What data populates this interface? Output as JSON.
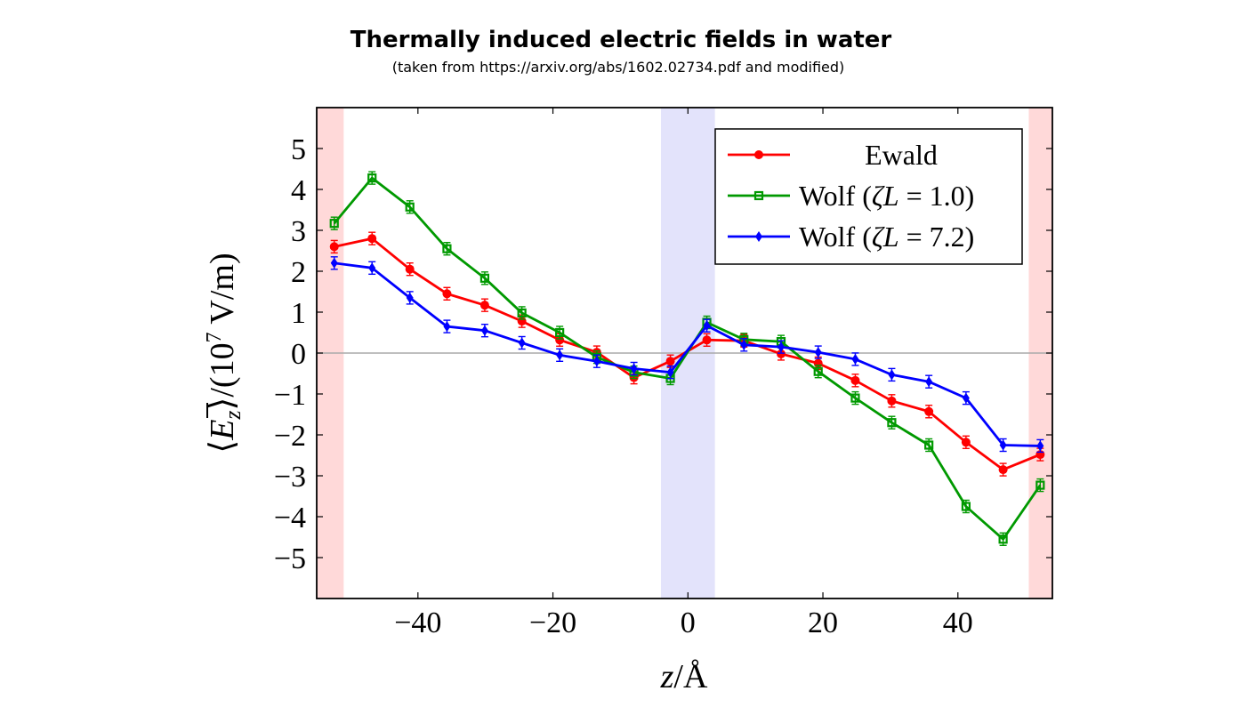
{
  "chart_data": {
    "type": "line",
    "title": "Thermally induced electric fields in water",
    "subtitle": "(taken from https://arxiv.org/abs/1602.02734.pdf and modified)",
    "xlabel_var": "z",
    "xlabel_sep": "/",
    "xlabel_unit": "Å",
    "ylabel_left": "⟨",
    "ylabel_var": "E",
    "ylabel_sub": "z",
    "ylabel_right": "⟩/(10",
    "ylabel_exp": "7",
    "ylabel_unit": " V/m)",
    "xlim": [
      -55,
      54
    ],
    "ylim": [
      -6,
      6
    ],
    "x_ticks": [
      -40,
      -20,
      0,
      20,
      40
    ],
    "x_tick_labels": [
      "−40",
      "−20",
      "0",
      "20",
      "40"
    ],
    "y_ticks": [
      5,
      4,
      3,
      2,
      1,
      0,
      -1,
      -2,
      -3,
      -4,
      -5
    ],
    "y_tick_labels": [
      "5",
      "4",
      "3",
      "2",
      "1",
      "0",
      "−1",
      "−2",
      "−3",
      "−4",
      "−5"
    ],
    "shaded_regions": [
      {
        "x": [
          -55,
          -51
        ],
        "color": "#ffd9d9"
      },
      {
        "x": [
          -4,
          4
        ],
        "color": "#e3e3fb"
      },
      {
        "x": [
          50.5,
          54
        ],
        "color": "#ffd9d9"
      }
    ],
    "zero_line": true,
    "grid": false,
    "legend": "top-right",
    "series": [
      {
        "name": "Ewald",
        "color": "#ff0000",
        "marker": "circle",
        "x": [
          -52.4,
          -46.8,
          -41.2,
          -35.7,
          -30.1,
          -24.6,
          -19.0,
          -13.5,
          -8.0,
          -2.6,
          2.8,
          8.3,
          13.8,
          19.3,
          24.8,
          30.2,
          35.7,
          41.2,
          46.7,
          52.2
        ],
        "y": [
          2.6,
          2.8,
          2.05,
          1.45,
          1.17,
          0.78,
          0.32,
          0.02,
          -0.6,
          -0.2,
          0.32,
          0.3,
          -0.02,
          -0.25,
          -0.67,
          -1.17,
          -1.43,
          -2.18,
          -2.85,
          -2.48
        ]
      },
      {
        "name": "Wolf (ζL = 1.0)",
        "name_prefix": "Wolf (",
        "name_var": "ζL",
        "name_suffix": " = 1.0)",
        "color": "#009900",
        "marker": "square",
        "x": [
          -52.4,
          -46.8,
          -41.2,
          -35.7,
          -30.1,
          -24.6,
          -19.0,
          -13.5,
          -8.0,
          -2.6,
          2.8,
          8.3,
          13.8,
          19.3,
          24.8,
          30.2,
          35.7,
          41.2,
          46.7,
          52.2
        ],
        "y": [
          3.17,
          4.28,
          3.57,
          2.55,
          1.83,
          0.98,
          0.5,
          -0.1,
          -0.47,
          -0.62,
          0.75,
          0.33,
          0.28,
          -0.45,
          -1.1,
          -1.7,
          -2.25,
          -3.75,
          -4.55,
          -3.23
        ]
      },
      {
        "name": "Wolf (ζL = 7.2)",
        "name_prefix": "Wolf (",
        "name_var": "ζL",
        "name_suffix": " = 7.2)",
        "color": "#0000ff",
        "marker": "diamond",
        "x": [
          -52.4,
          -46.8,
          -41.2,
          -35.7,
          -30.1,
          -24.6,
          -19.0,
          -13.5,
          -8.0,
          -2.6,
          2.8,
          8.3,
          13.8,
          19.3,
          24.8,
          30.2,
          35.7,
          41.2,
          46.7,
          52.2
        ],
        "y": [
          2.2,
          2.08,
          1.35,
          0.65,
          0.55,
          0.25,
          -0.05,
          -0.2,
          -0.38,
          -0.47,
          0.67,
          0.2,
          0.15,
          0.02,
          -0.15,
          -0.53,
          -0.7,
          -1.1,
          -2.25,
          -2.27
        ]
      }
    ]
  }
}
